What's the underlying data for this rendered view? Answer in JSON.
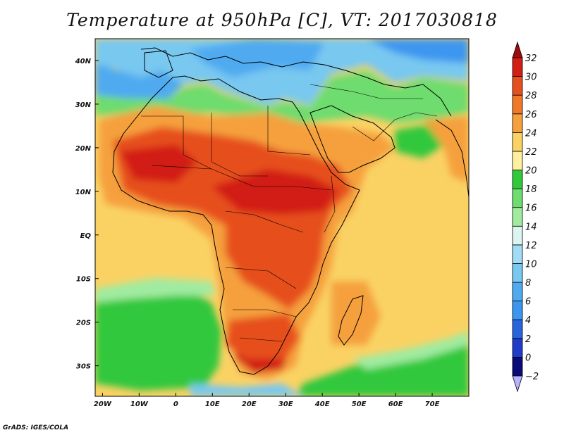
{
  "title": "Temperature at 950hPa [C], VT: 2017030818",
  "credit": "GrADS: IGES/COLA",
  "map": {
    "lon_range": [
      -22,
      80
    ],
    "lat_range": [
      -37,
      45
    ],
    "lon_ticks": [
      {
        "v": -20,
        "label": "20W"
      },
      {
        "v": -10,
        "label": "10W"
      },
      {
        "v": 0,
        "label": "0"
      },
      {
        "v": 10,
        "label": "10E"
      },
      {
        "v": 20,
        "label": "20E"
      },
      {
        "v": 30,
        "label": "30E"
      },
      {
        "v": 40,
        "label": "40E"
      },
      {
        "v": 50,
        "label": "50E"
      },
      {
        "v": 60,
        "label": "60E"
      },
      {
        "v": 70,
        "label": "70E"
      }
    ],
    "lat_ticks": [
      {
        "v": 40,
        "label": "40N"
      },
      {
        "v": 30,
        "label": "30N"
      },
      {
        "v": 20,
        "label": "20N"
      },
      {
        "v": 10,
        "label": "10N"
      },
      {
        "v": 0,
        "label": "EQ"
      },
      {
        "v": -10,
        "label": "10S"
      },
      {
        "v": -20,
        "label": "20S"
      },
      {
        "v": -30,
        "label": "30S"
      }
    ]
  },
  "colorbar": {
    "levels": [
      -2,
      0,
      2,
      4,
      6,
      8,
      10,
      12,
      14,
      16,
      18,
      20,
      22,
      24,
      26,
      28,
      30,
      32
    ],
    "colors": [
      "#b4b4ff",
      "#0a0a78",
      "#1e3cc8",
      "#2864dc",
      "#3c96f0",
      "#50aaf0",
      "#78c8f0",
      "#a0dcf5",
      "#dcf5f0",
      "#a0eba0",
      "#6edc6e",
      "#32c83c",
      "#fff0a0",
      "#fad264",
      "#f5a03c",
      "#f07828",
      "#e6501e",
      "#d21e14",
      "#a00a0a"
    ]
  }
}
